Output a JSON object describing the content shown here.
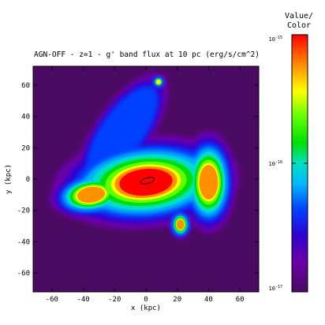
{
  "chart_data": {
    "type": "heatmap",
    "title": "AGN-OFF - z=1 - g' band flux at 10 pc (erg/s/cm^2)",
    "xlabel": "x (kpc)",
    "ylabel": "y (kpc)",
    "xlim": [
      -72,
      72
    ],
    "ylim": [
      -72,
      72
    ],
    "xticks": [
      -60,
      -40,
      -20,
      0,
      20,
      40,
      60
    ],
    "yticks": [
      -60,
      -40,
      -20,
      0,
      20,
      40,
      60
    ],
    "xtick_labels": [
      "-60",
      "-40",
      "-20",
      "0",
      "20",
      "40",
      "60"
    ],
    "ytick_labels": [
      "-60",
      "-40",
      "-20",
      "0",
      "20",
      "40",
      "60"
    ],
    "colorbar": {
      "title_line1": "Value/",
      "title_line2": "Color",
      "scale": "log",
      "min_exponent": -17,
      "max_exponent": -15,
      "tick_exponents": [
        -15,
        -16,
        -17
      ],
      "tick_labels": [
        {
          "base": "10",
          "exp": "-15"
        },
        {
          "base": "10",
          "exp": "-16"
        },
        {
          "base": "10",
          "exp": "-17"
        }
      ]
    },
    "background_color": "#4b0a62",
    "features": [
      {
        "name": "central-galaxy",
        "x": 0,
        "y": -2,
        "rx": 20,
        "ry": 10,
        "peak_log": -15.0
      },
      {
        "name": "west-companion",
        "x": -35,
        "y": -10,
        "rx": 9,
        "ry": 5,
        "peak_log": -15.05
      },
      {
        "name": "east-companion",
        "x": 40,
        "y": -2,
        "rx": 6,
        "ry": 11,
        "peak_log": -15.05
      },
      {
        "name": "south-clump",
        "x": 22,
        "y": -29,
        "rx": 3,
        "ry": 4,
        "peak_log": -15.1
      },
      {
        "name": "north-clump",
        "x": 8,
        "y": 62,
        "rx": 2,
        "ry": 2,
        "peak_log": -15.2
      },
      {
        "name": "tidal-tail",
        "x": -15,
        "y": 30,
        "rx": 6,
        "ry": 15,
        "peak_log": -16.2
      }
    ]
  }
}
